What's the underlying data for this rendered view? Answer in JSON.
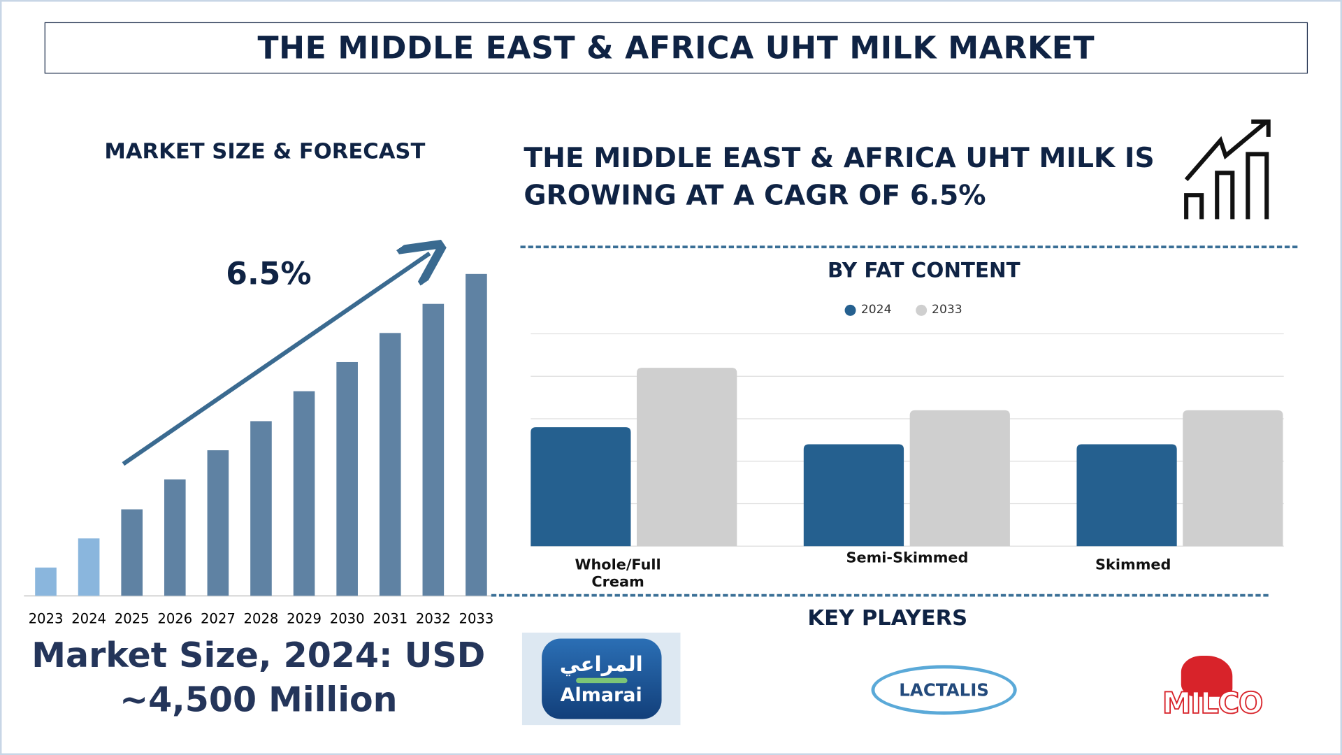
{
  "header": {
    "title": "THE MIDDLE EAST & AFRICA UHT MILK MARKET"
  },
  "left": {
    "section_title": "MARKET SIZE & FORECAST",
    "growth_label": "6.5%",
    "market_size_line1": "Market Size, 2024: USD",
    "market_size_line2": "~4,500 Million"
  },
  "right": {
    "cagr_text": "THE MIDDLE EAST & AFRICA UHT MILK IS GROWING AT A CAGR OF 6.5%",
    "growth_icon": "bar-chart-up-arrow-icon",
    "key_players_title": "KEY PLAYERS",
    "players": [
      {
        "name": "Almarai",
        "arabic": "المراعي"
      },
      {
        "name": "LACTALIS"
      },
      {
        "name": "MILCO"
      }
    ]
  },
  "chart_data": [
    {
      "type": "bar",
      "title": "MARKET SIZE & FORECAST",
      "categories": [
        "2023",
        "2024",
        "2025",
        "2026",
        "2027",
        "2028",
        "2029",
        "2030",
        "2031",
        "2032",
        "2033"
      ],
      "values": [
        33,
        67,
        101,
        136,
        170,
        204,
        239,
        273,
        307,
        341,
        376
      ],
      "annotation": "6.5%",
      "grid": false,
      "colors": [
        "#8ab6dd",
        "#8ab6dd",
        "#5f82a3",
        "#5f82a3",
        "#5f82a3",
        "#5f82a3",
        "#5f82a3",
        "#5f82a3",
        "#5f82a3",
        "#5f82a3",
        "#5f82a3"
      ],
      "arrow_color": "#3a6a90"
    },
    {
      "type": "bar",
      "title": "BY FAT CONTENT",
      "categories": [
        "Whole/Full Cream",
        "Semi-Skimmed",
        "Skimmed"
      ],
      "series": [
        {
          "name": "2024",
          "values": [
            2.8,
            2.4,
            2.4
          ],
          "color": "#25608f"
        },
        {
          "name": "2033",
          "values": [
            4.2,
            3.2,
            3.2
          ],
          "color": "#cfcfcf"
        }
      ],
      "ylim": [
        0,
        5
      ],
      "grid": true,
      "legend": "top-center"
    }
  ]
}
